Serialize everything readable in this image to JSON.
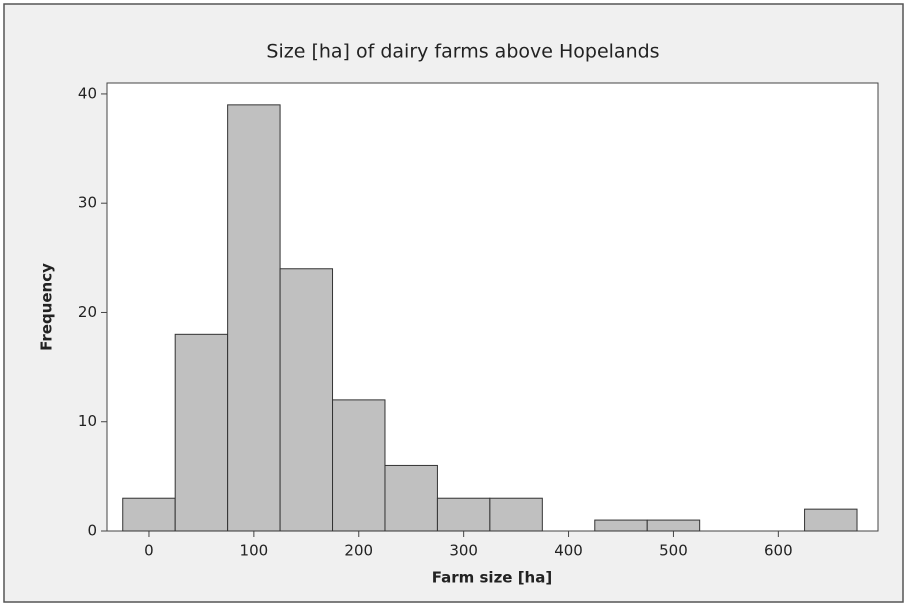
{
  "chart_data": {
    "type": "histogram",
    "title": "Size [ha] of dairy farms above Hopelands",
    "x_label": "Farm size [ha]",
    "y_label": "Frequency",
    "bins": [
      -25,
      25,
      75,
      125,
      175,
      225,
      275,
      325,
      375,
      425,
      475,
      525,
      575,
      625,
      675
    ],
    "counts": [
      3,
      18,
      39,
      24,
      12,
      6,
      3,
      3,
      0,
      1,
      1,
      0,
      0,
      2
    ],
    "color": "#c0c0c0",
    "xlim": [
      -40,
      695
    ],
    "xticks": [
      0,
      100,
      200,
      300,
      400,
      500,
      600
    ],
    "ylim": [
      0,
      41
    ],
    "yticks": [
      0,
      10,
      20,
      30,
      40
    ],
    "grid": false
  }
}
